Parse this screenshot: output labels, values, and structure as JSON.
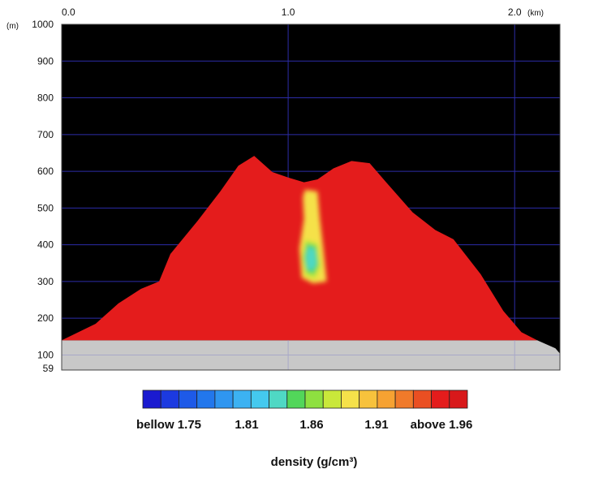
{
  "chart_data": {
    "type": "heatmap",
    "title": "",
    "x_axis": {
      "unit": "(km)",
      "range": [
        0.0,
        2.2
      ],
      "ticks": [
        {
          "value": 0.0,
          "label": "0.0"
        },
        {
          "value": 1.0,
          "label": "1.0"
        },
        {
          "value": 2.0,
          "label": "2.0"
        }
      ]
    },
    "y_axis": {
      "unit": "(m)",
      "range": [
        59,
        1000
      ],
      "ticks": [
        {
          "value": 1000,
          "label": "1000"
        },
        {
          "value": 900,
          "label": "900"
        },
        {
          "value": 800,
          "label": "800"
        },
        {
          "value": 700,
          "label": "700"
        },
        {
          "value": 600,
          "label": "600"
        },
        {
          "value": 500,
          "label": "500"
        },
        {
          "value": 400,
          "label": "400"
        },
        {
          "value": 300,
          "label": "300"
        },
        {
          "value": 200,
          "label": "200"
        },
        {
          "value": 100,
          "label": "100"
        },
        {
          "value": 59,
          "label": "59"
        }
      ]
    },
    "grid": true,
    "background_color": "#000000",
    "grid_color": "#2c2ca8",
    "ground_level_m": 140,
    "ground_color": "#c8c8c8",
    "mountain_color": "#e41c1c",
    "mountain_profile": [
      [
        0.0,
        140
      ],
      [
        0.15,
        185
      ],
      [
        0.25,
        240
      ],
      [
        0.35,
        280
      ],
      [
        0.43,
        300
      ],
      [
        0.48,
        375
      ],
      [
        0.6,
        465
      ],
      [
        0.7,
        545
      ],
      [
        0.78,
        615
      ],
      [
        0.85,
        642
      ],
      [
        0.93,
        598
      ],
      [
        1.0,
        583
      ],
      [
        1.07,
        570
      ],
      [
        1.13,
        578
      ],
      [
        1.2,
        608
      ],
      [
        1.28,
        628
      ],
      [
        1.36,
        622
      ],
      [
        1.43,
        572
      ],
      [
        1.55,
        488
      ],
      [
        1.65,
        440
      ],
      [
        1.73,
        415
      ],
      [
        1.85,
        320
      ],
      [
        1.95,
        220
      ],
      [
        2.03,
        162
      ],
      [
        2.1,
        140
      ]
    ],
    "ground_profile": [
      [
        2.1,
        140
      ],
      [
        2.18,
        118
      ],
      [
        2.23,
        82
      ],
      [
        2.26,
        59
      ]
    ],
    "anomaly": {
      "description_levels": [
        {
          "value": 1.91,
          "color": "#f5e14a",
          "outline": [
            [
              1.075,
              550
            ],
            [
              1.13,
              545
            ],
            [
              1.14,
              470
            ],
            [
              1.155,
              390
            ],
            [
              1.17,
              300
            ],
            [
              1.11,
              295
            ],
            [
              1.06,
              310
            ],
            [
              1.05,
              390
            ],
            [
              1.07,
              470
            ],
            [
              1.065,
              530
            ]
          ]
        },
        {
          "value": 1.89,
          "color": "#c9e83a",
          "outline": [
            [
              1.075,
              415
            ],
            [
              1.13,
              405
            ],
            [
              1.145,
              340
            ],
            [
              1.12,
              305
            ],
            [
              1.075,
              315
            ],
            [
              1.06,
              365
            ]
          ]
        },
        {
          "value": 1.86,
          "color": "#52d65a",
          "outline": [
            [
              1.08,
              405
            ],
            [
              1.125,
              398
            ],
            [
              1.135,
              345
            ],
            [
              1.115,
              318
            ],
            [
              1.08,
              325
            ],
            [
              1.068,
              365
            ]
          ]
        },
        {
          "value": 1.84,
          "color": "#4fd8c4",
          "outline": [
            [
              1.088,
              395
            ],
            [
              1.118,
              388
            ],
            [
              1.125,
              348
            ],
            [
              1.108,
              330
            ],
            [
              1.085,
              334
            ],
            [
              1.078,
              365
            ]
          ]
        }
      ]
    },
    "colorbar": {
      "title": "density (g/cm³)",
      "colors": [
        "#1a1ad0",
        "#1c3ae0",
        "#1e5ae8",
        "#2277ec",
        "#2f96f0",
        "#3cb2f2",
        "#44c9ee",
        "#4fd8c4",
        "#52d65a",
        "#8ee040",
        "#c9e83a",
        "#f5e14a",
        "#f7c23c",
        "#f6a232",
        "#f07a2a",
        "#ea4f22",
        "#e41c1c",
        "#d8181a"
      ],
      "labels": [
        {
          "value": 1.75,
          "label": "bellow 1.75"
        },
        {
          "value": 1.81,
          "label": "1.81"
        },
        {
          "value": 1.86,
          "label": "1.86"
        },
        {
          "value": 1.91,
          "label": "1.91"
        },
        {
          "value": 1.96,
          "label": "above 1.96"
        }
      ],
      "range": [
        1.73,
        1.98
      ]
    }
  }
}
